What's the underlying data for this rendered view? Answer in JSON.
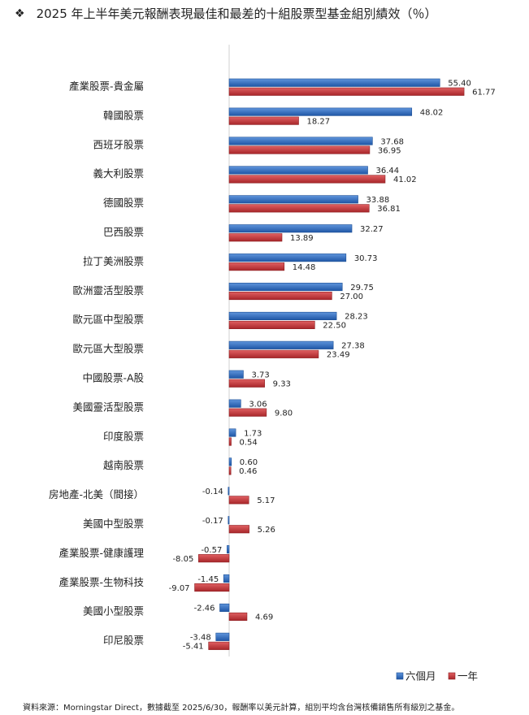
{
  "title": "2025 年上半年美元報酬表現最佳和最差的十組股票型基金組別績效（％）",
  "title_icon": "diamond-bullet-icon",
  "source": "資料來源：Morningstar Direct，數據截至 2025/6/30，報酬率以美元計算，組別平均含台灣核備銷售所有級別之基金。",
  "chart_data": {
    "type": "bar",
    "orientation": "horizontal",
    "title": "2025 年上半年美元報酬表現最佳和最差的十組股票型基金組別績效（％）",
    "categories": [
      "產業股票-貴金屬",
      "韓國股票",
      "西班牙股票",
      "義大利股票",
      "德國股票",
      "巴西股票",
      "拉丁美洲股票",
      "歐洲靈活型股票",
      "歐元區中型股票",
      "歐元區大型股票",
      "中國股票-A股",
      "美國靈活型股票",
      "印度股票",
      "越南股票",
      "房地產-北美（間接）",
      "美國中型股票",
      "產業股票-健康護理",
      "產業股票-生物科技",
      "美國小型股票",
      "印尼股票"
    ],
    "series": [
      {
        "name": "六個月",
        "color": "#2e6cc0",
        "values": [
          55.4,
          48.02,
          37.68,
          36.44,
          33.88,
          32.27,
          30.73,
          29.75,
          28.23,
          27.38,
          3.73,
          3.06,
          1.73,
          0.6,
          -0.14,
          -0.17,
          -0.57,
          -1.45,
          -2.46,
          -3.48
        ]
      },
      {
        "name": "一年",
        "color": "#c8373a",
        "values": [
          61.77,
          18.27,
          36.95,
          41.02,
          36.81,
          13.89,
          14.48,
          27.0,
          22.5,
          23.49,
          9.33,
          9.8,
          0.54,
          0.46,
          5.17,
          5.26,
          -8.05,
          -9.07,
          4.69,
          -5.41
        ]
      }
    ],
    "value_labels": [
      [
        "55.40",
        "61.77"
      ],
      [
        "48.02",
        "18.27"
      ],
      [
        "37.68",
        "36.95"
      ],
      [
        "36.44",
        "41.02"
      ],
      [
        "33.88",
        "36.81"
      ],
      [
        "32.27",
        "13.89"
      ],
      [
        "30.73",
        "14.48"
      ],
      [
        "29.75",
        "27.00"
      ],
      [
        "28.23",
        "22.50"
      ],
      [
        "27.38",
        "23.49"
      ],
      [
        "3.73",
        "9.33"
      ],
      [
        "3.06",
        "9.80"
      ],
      [
        "1.73",
        "0.54"
      ],
      [
        "0.60",
        "0.46"
      ],
      [
        "-0.14",
        "5.17"
      ],
      [
        "-0.17",
        "5.26"
      ],
      [
        "-0.57",
        "-8.05"
      ],
      [
        "-1.45",
        "-9.07"
      ],
      [
        "-2.46",
        "4.69"
      ],
      [
        "-3.48",
        "-5.41"
      ]
    ],
    "legend": [
      "六個月",
      "一年"
    ],
    "legend_position": "bottom-right",
    "grid": false
  }
}
